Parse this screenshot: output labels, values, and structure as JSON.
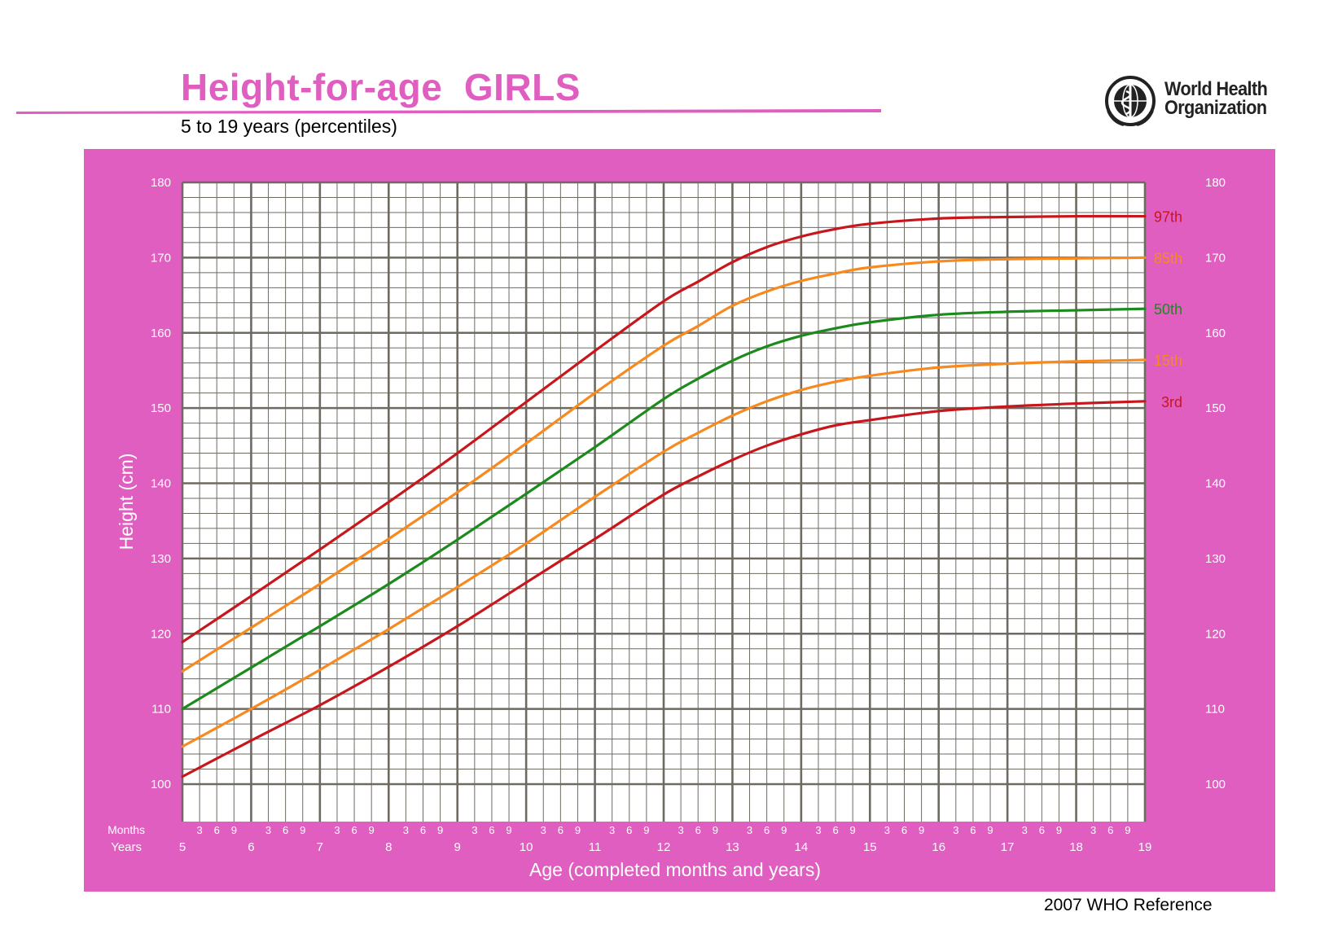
{
  "header": {
    "title": "Height-for-age  GIRLS",
    "subtitle": "5 to 19 years (percentiles)",
    "org_line1": "World Health",
    "org_line2": "Organization",
    "logo_icon": "who-emblem-icon"
  },
  "footer": {
    "reference": "2007 WHO Reference"
  },
  "colors": {
    "frame": "#e05ec0",
    "title": "#e05ec0",
    "grid": "#6e6a61",
    "p97": "#c8171c",
    "p85": "#f7891e",
    "p50": "#1c8a1c",
    "p15": "#f7891e",
    "p3": "#c8171c"
  },
  "chart_data": {
    "type": "line",
    "xlabel": "Age (completed months and years)",
    "ylabel": "Height (cm)",
    "xlim": [
      5,
      19
    ],
    "ylim": [
      100,
      180
    ],
    "y_ticks": [
      100,
      110,
      120,
      130,
      140,
      150,
      160,
      170,
      180
    ],
    "x_ticks": [
      5,
      6,
      7,
      8,
      9,
      10,
      11,
      12,
      13,
      14,
      15,
      16,
      17,
      18,
      19
    ],
    "month_ticks": [
      "3",
      "6",
      "9"
    ],
    "row_labels": {
      "months": "Months",
      "years": "Years"
    },
    "grid": true,
    "x": [
      5,
      6,
      7,
      8,
      9,
      10,
      11,
      12,
      12.5,
      13,
      13.5,
      14,
      14.5,
      15,
      16,
      17,
      18,
      19
    ],
    "series": [
      {
        "name": "97th",
        "values": [
          118.9,
          125.0,
          131.2,
          137.5,
          144.0,
          150.8,
          157.6,
          164.2,
          166.8,
          169.4,
          171.4,
          172.8,
          173.8,
          174.5,
          175.2,
          175.4,
          175.5,
          175.5
        ]
      },
      {
        "name": "85th",
        "values": [
          115.0,
          120.8,
          126.6,
          132.6,
          138.8,
          145.3,
          152.0,
          158.3,
          160.9,
          163.6,
          165.5,
          166.9,
          167.9,
          168.7,
          169.5,
          169.8,
          169.9,
          170.0
        ]
      },
      {
        "name": "50th",
        "values": [
          110.0,
          115.5,
          121.0,
          126.6,
          132.5,
          138.6,
          144.8,
          151.2,
          153.9,
          156.3,
          158.2,
          159.6,
          160.6,
          161.4,
          162.4,
          162.8,
          163.0,
          163.2
        ]
      },
      {
        "name": "15th",
        "values": [
          105.0,
          110.0,
          115.2,
          120.6,
          126.2,
          132.0,
          138.2,
          144.2,
          146.7,
          149.0,
          150.9,
          152.4,
          153.5,
          154.3,
          155.4,
          155.9,
          156.2,
          156.4
        ]
      },
      {
        "name": "3rd",
        "values": [
          101.0,
          105.8,
          110.5,
          115.6,
          121.0,
          126.8,
          132.6,
          138.5,
          140.9,
          143.1,
          145.0,
          146.5,
          147.7,
          148.4,
          149.6,
          150.2,
          150.6,
          150.9
        ]
      }
    ]
  }
}
